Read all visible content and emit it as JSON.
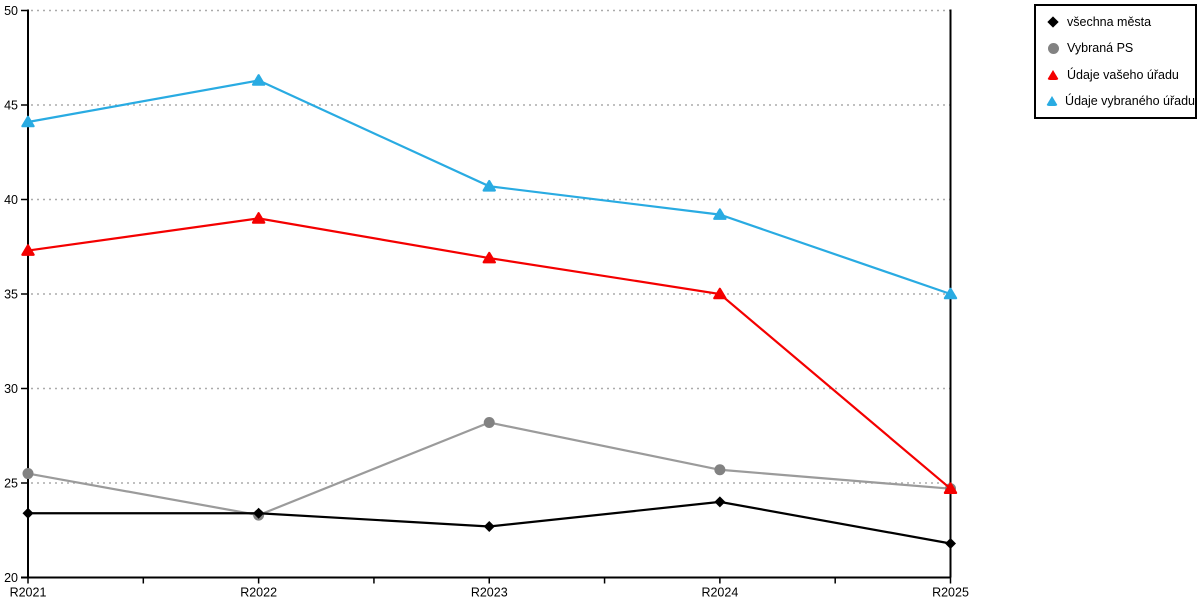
{
  "chart_data": {
    "type": "line",
    "title": "",
    "xlabel": "",
    "ylabel": "",
    "categories": [
      "R2021",
      "R2022",
      "R2023",
      "R2024",
      "R2025"
    ],
    "series": [
      {
        "name": "všechna města",
        "marker": "diamond",
        "color": "#000000",
        "line_color": "#000000",
        "values": [
          23.4,
          23.4,
          22.7,
          24.0,
          21.8
        ]
      },
      {
        "name": "Vybraná PS",
        "marker": "circle",
        "color": "#828282",
        "line_color": "#9b9b9b",
        "values": [
          25.5,
          23.3,
          28.2,
          25.7,
          24.7
        ]
      },
      {
        "name": "Údaje vašeho úřadu",
        "marker": "triangle",
        "color": "#f40000",
        "line_color": "#f40000",
        "values": [
          37.3,
          39.0,
          36.9,
          35.0,
          24.7
        ]
      },
      {
        "name": "Údaje vybraného úřadu",
        "marker": "triangle",
        "color": "#29abe2",
        "line_color": "#29abe2",
        "values": [
          44.1,
          46.3,
          40.7,
          39.2,
          35.0
        ]
      }
    ],
    "ylim": [
      20,
      50
    ],
    "yticks": [
      20,
      25,
      30,
      35,
      40,
      45,
      50
    ],
    "grid": "horizontal dotted",
    "gridline_color": "#ababab",
    "axis_color": "#000000",
    "legend_position": "top-right",
    "draw_order": [
      1,
      0,
      2,
      3
    ]
  }
}
